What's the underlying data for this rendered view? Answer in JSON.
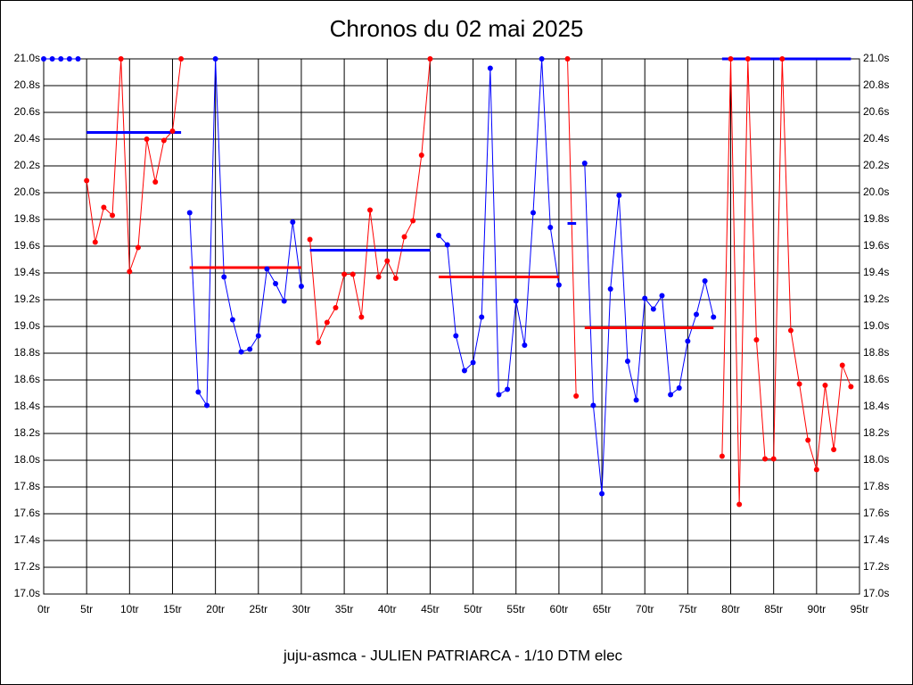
{
  "chart_data": {
    "type": "line",
    "title": "Chronos du 02 mai 2025",
    "xlabel": "juju-asmca - JULIEN PATRIARCA - 1/10 DTM elec",
    "grid": true,
    "xlim": [
      0,
      95
    ],
    "ylim": [
      17.0,
      21.0
    ],
    "xticks": [
      {
        "value": 0,
        "label": "0tr"
      },
      {
        "value": 5,
        "label": "5tr"
      },
      {
        "value": 10,
        "label": "10tr"
      },
      {
        "value": 15,
        "label": "15tr"
      },
      {
        "value": 20,
        "label": "20tr"
      },
      {
        "value": 25,
        "label": "25tr"
      },
      {
        "value": 30,
        "label": "30tr"
      },
      {
        "value": 35,
        "label": "35tr"
      },
      {
        "value": 40,
        "label": "40tr"
      },
      {
        "value": 45,
        "label": "45tr"
      },
      {
        "value": 50,
        "label": "50tr"
      },
      {
        "value": 55,
        "label": "55tr"
      },
      {
        "value": 60,
        "label": "60tr"
      },
      {
        "value": 65,
        "label": "65tr"
      },
      {
        "value": 70,
        "label": "70tr"
      },
      {
        "value": 75,
        "label": "75tr"
      },
      {
        "value": 80,
        "label": "80tr"
      },
      {
        "value": 85,
        "label": "85tr"
      },
      {
        "value": 90,
        "label": "90tr"
      },
      {
        "value": 95,
        "label": "95tr"
      }
    ],
    "yticks": [
      {
        "value": 17.0,
        "label": "17.0s"
      },
      {
        "value": 17.2,
        "label": "17.2s"
      },
      {
        "value": 17.4,
        "label": "17.4s"
      },
      {
        "value": 17.6,
        "label": "17.6s"
      },
      {
        "value": 17.8,
        "label": "17.8s"
      },
      {
        "value": 18.0,
        "label": "18.0s"
      },
      {
        "value": 18.2,
        "label": "18.2s"
      },
      {
        "value": 18.4,
        "label": "18.4s"
      },
      {
        "value": 18.6,
        "label": "18.6s"
      },
      {
        "value": 18.8,
        "label": "18.8s"
      },
      {
        "value": 19.0,
        "label": "19.0s"
      },
      {
        "value": 19.2,
        "label": "19.2s"
      },
      {
        "value": 19.4,
        "label": "19.4s"
      },
      {
        "value": 19.6,
        "label": "19.6s"
      },
      {
        "value": 19.8,
        "label": "19.8s"
      },
      {
        "value": 20.0,
        "label": "20.0s"
      },
      {
        "value": 20.2,
        "label": "20.2s"
      },
      {
        "value": 20.4,
        "label": "20.4s"
      },
      {
        "value": 20.6,
        "label": "20.6s"
      },
      {
        "value": 20.8,
        "label": "20.8s"
      },
      {
        "value": 21.0,
        "label": "21.0s"
      }
    ],
    "series": [
      {
        "color": "#0000ff",
        "x": [
          0,
          1,
          2,
          3,
          4
        ],
        "values": [
          21.0,
          21.0,
          21.0,
          21.0,
          21.0
        ]
      },
      {
        "color": "#ff0000",
        "x": [
          5,
          6,
          7,
          8,
          9,
          10,
          11,
          12,
          13,
          14,
          15,
          16
        ],
        "values": [
          20.09,
          19.63,
          19.89,
          19.83,
          21.0,
          19.41,
          19.59,
          20.4,
          20.08,
          20.39,
          20.46,
          21.0
        ],
        "average": 20.45,
        "average_color": "#0000ff"
      },
      {
        "color": "#0000ff",
        "x": [
          17,
          18,
          19,
          20,
          21,
          22,
          23,
          24,
          25,
          26,
          27,
          28,
          29,
          30
        ],
        "values": [
          19.85,
          18.51,
          18.41,
          21.0,
          19.37,
          19.05,
          18.81,
          18.83,
          18.93,
          19.43,
          19.32,
          19.19,
          19.78,
          19.3
        ],
        "average": 19.44,
        "average_color": "#ff0000"
      },
      {
        "color": "#ff0000",
        "x": [
          31,
          32,
          33,
          34,
          35,
          36,
          37,
          38,
          39,
          40,
          41,
          42,
          43,
          44,
          45
        ],
        "values": [
          19.65,
          18.88,
          19.03,
          19.14,
          19.39,
          19.39,
          19.07,
          19.87,
          19.37,
          19.49,
          19.36,
          19.67,
          19.79,
          20.28,
          21.0
        ],
        "average": 19.57,
        "average_color": "#0000ff"
      },
      {
        "color": "#0000ff",
        "x": [
          46,
          47,
          48,
          49,
          50,
          51,
          52,
          53,
          54,
          55,
          56,
          57,
          58,
          59,
          60
        ],
        "values": [
          19.68,
          19.61,
          18.93,
          18.67,
          18.73,
          19.07,
          20.93,
          18.49,
          18.53,
          19.19,
          18.86,
          19.85,
          21.0,
          19.74,
          19.31
        ],
        "average": 19.37,
        "average_color": "#ff0000"
      },
      {
        "color": "#ff0000",
        "x": [
          61,
          62
        ],
        "values": [
          21.0,
          18.48
        ],
        "average": 19.77,
        "average_color": "#0000ff"
      },
      {
        "color": "#0000ff",
        "x": [
          63,
          64,
          65,
          66,
          67,
          68,
          69,
          70,
          71,
          72,
          73,
          74,
          75,
          76,
          77,
          78
        ],
        "values": [
          20.22,
          18.41,
          17.75,
          19.28,
          19.98,
          18.74,
          18.45,
          19.21,
          19.13,
          19.23,
          18.49,
          18.54,
          18.89,
          19.09,
          19.34,
          19.07
        ],
        "average": 18.99,
        "average_color": "#ff0000"
      },
      {
        "color": "#ff0000",
        "x": [
          79,
          80,
          81,
          82,
          83,
          84,
          85,
          86,
          87,
          88,
          89,
          90,
          91,
          92,
          93,
          94
        ],
        "values": [
          18.03,
          21.0,
          17.67,
          21.0,
          18.9,
          18.01,
          18.01,
          21.0,
          18.97,
          18.57,
          18.15,
          17.93,
          18.56,
          18.08,
          18.71,
          18.55
        ],
        "average": 21.0,
        "average_color": "#0000ff"
      }
    ]
  }
}
